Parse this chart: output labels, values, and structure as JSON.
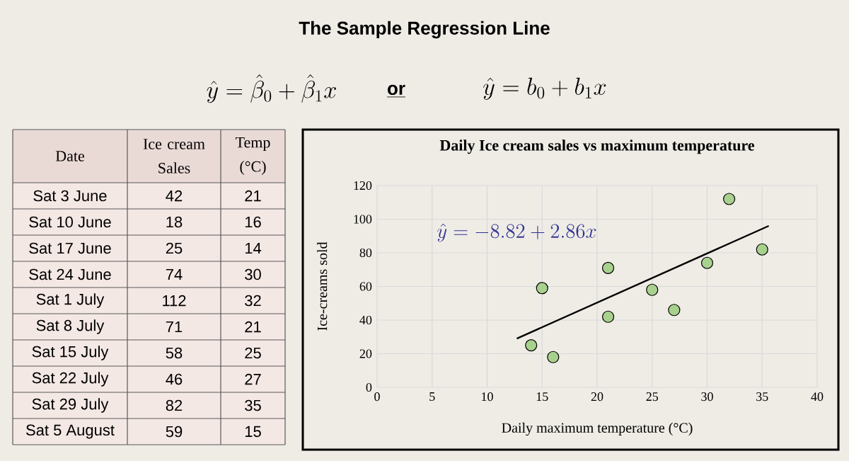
{
  "chart_data": [
    {
      "type": "other",
      "title": "The Sample Regression Line",
      "annotations": [
        "\\hat{y} = \\hat{\\beta}_0 + \\hat{\\beta}_1 x",
        "or",
        "\\hat{y} = b_0 + b_1 x"
      ],
      "xlabel": "Date",
      "categories": [
        "Sat 3 June",
        "Sat 10 June",
        "Sat 17 June",
        "Sat 24 June",
        "Sat 1 July",
        "Sat 8 July",
        "Sat 15 July",
        "Sat 22 July",
        "Sat 29 July",
        "Sat 5 August"
      ],
      "series": [
        {
          "name": "Ice cream Sales",
          "values": [
            42,
            18,
            25,
            74,
            112,
            71,
            58,
            46,
            82,
            59
          ]
        },
        {
          "name": "Temp (°C)",
          "values": [
            21,
            16,
            14,
            30,
            32,
            21,
            25,
            27,
            35,
            15
          ]
        }
      ],
      "data_labels": true
    },
    {
      "type": "scatter",
      "title": "Daily Ice cream sales vs maximum temperature",
      "xlabel": "Daily maximum temperature (°C)",
      "ylabel": "Ice-creams sold",
      "annotations": [
        "\\hat{y} = -8.82 + 2.86x"
      ],
      "xlim": [
        0,
        40
      ],
      "ylim": [
        0,
        120
      ],
      "xticks": [
        0,
        5,
        10,
        15,
        20,
        25,
        30,
        35,
        40
      ],
      "yticks": [
        0,
        20,
        40,
        60,
        80,
        100,
        120
      ],
      "grid": true,
      "marker": "circle",
      "series": [
        {
          "type": "scatter",
          "color": "#a9d18e",
          "x": [
            21,
            16,
            14,
            30,
            32,
            21,
            25,
            27,
            35,
            15
          ],
          "values": [
            42,
            18,
            25,
            74,
            112,
            71,
            58,
            46,
            82,
            59
          ]
        },
        {
          "type": "line",
          "color": "#000000",
          "marker": "none",
          "x": [
            12.7,
            35.6
          ],
          "values": [
            29,
            96
          ]
        }
      ]
    }
  ]
}
